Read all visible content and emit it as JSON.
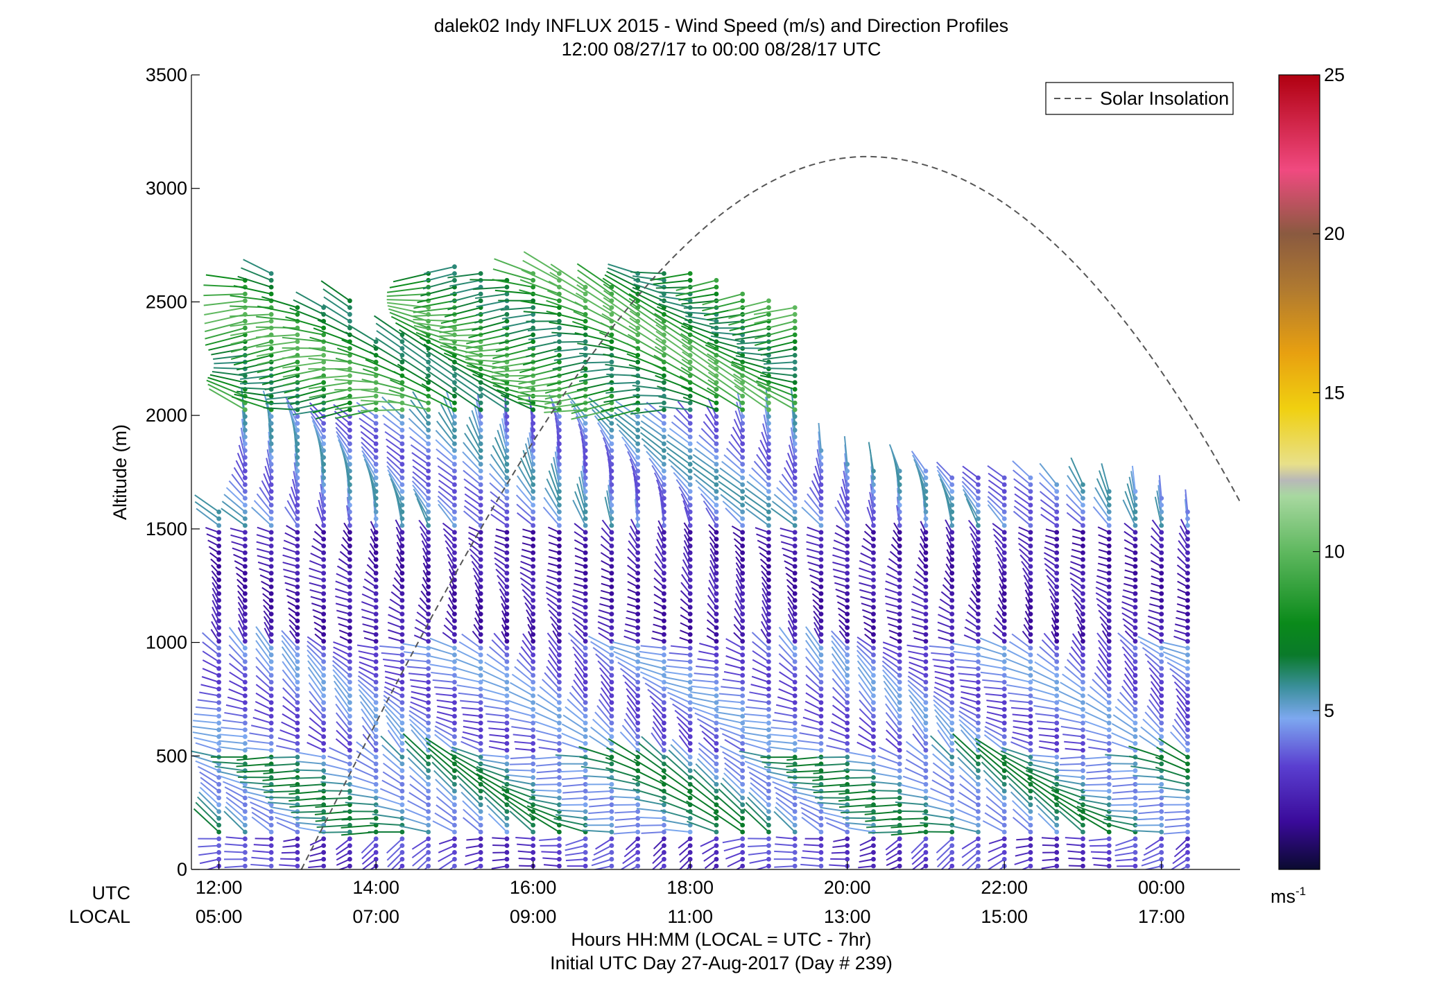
{
  "chart_data": {
    "type": "wind_barb_profile",
    "title": "dalek02 Indy INFLUX 2015 - Wind Speed (m/s) and Direction Profiles",
    "subtitle": "12:00 08/27/17 to 00:00 08/28/17  UTC",
    "ylabel": "Altitude (m)",
    "xlabel": "Hours HH:MM  (LOCAL = UTC - 7hr)",
    "footer": "Initial UTC Day 27-Aug-2017 (Day # 239)",
    "ylim": [
      0,
      3500
    ],
    "xlim_hours_utc": [
      11.65,
      25.0
    ],
    "yticks": [
      0,
      500,
      1000,
      1500,
      2000,
      2500,
      3000,
      3500
    ],
    "ytick_labels": [
      "0",
      "500",
      "1000",
      "1500",
      "2000",
      "2500",
      "3000",
      "3500"
    ],
    "x_row_labels": [
      "UTC",
      "LOCAL"
    ],
    "xticks_hours_utc": [
      12,
      14,
      16,
      18,
      20,
      22,
      24
    ],
    "xtick_labels_utc": [
      "12:00",
      "14:00",
      "16:00",
      "18:00",
      "20:00",
      "22:00",
      "00:00"
    ],
    "xtick_labels_local": [
      "05:00",
      "07:00",
      "09:00",
      "11:00",
      "13:00",
      "15:00",
      "17:00"
    ],
    "legend": {
      "label": "Solar Insolation",
      "placement": "top-right",
      "line_style": "dashed"
    },
    "solar_insolation": {
      "peak_hour_utc": 20.25,
      "peak_altitude_m": 3140,
      "points": [
        [
          13.05,
          0
        ],
        [
          15.0,
          1200
        ],
        [
          17.0,
          2400
        ],
        [
          18.5,
          2900
        ],
        [
          20.25,
          3140
        ],
        [
          22.0,
          2900
        ],
        [
          23.5,
          2400
        ],
        [
          25.0,
          1620
        ]
      ]
    },
    "colorbar": {
      "range": [
        0,
        25
      ],
      "ticks": [
        5,
        10,
        15,
        20,
        25
      ],
      "tick_labels": [
        "5",
        "10",
        "15",
        "20",
        "25"
      ],
      "unit": "ms",
      "unit_exponent": "-1"
    },
    "profiles": {
      "interval_minutes": 20,
      "first_hour_utc": 12.0,
      "count": 38,
      "max_altitude_m": [
        1580,
        2600,
        2650,
        2480,
        2500,
        2520,
        2330,
        2380,
        2640,
        2660,
        2630,
        2600,
        2640,
        2630,
        2580,
        2590,
        2630,
        2650,
        2640,
        2600,
        2550,
        2520,
        2490,
        1850,
        1800,
        1780,
        1760,
        1760,
        1740,
        1750,
        1730,
        1730,
        1710,
        1700,
        1690,
        1680,
        1650,
        1600
      ]
    },
    "layers": [
      {
        "altitude_m": [
          0,
          150
        ],
        "speed_ms": 3.0,
        "direction_deg": 250
      },
      {
        "altitude_m": [
          150,
          500
        ],
        "speed_ms": 5.5,
        "direction_deg": 290
      },
      {
        "altitude_m": [
          500,
          1000
        ],
        "speed_ms": 4.0,
        "direction_deg": 300
      },
      {
        "altitude_m": [
          1000,
          1500
        ],
        "speed_ms": 2.0,
        "direction_deg": 310
      },
      {
        "altitude_m": [
          1500,
          2000
        ],
        "speed_ms": 4.5,
        "direction_deg": 330
      },
      {
        "altitude_m": [
          2000,
          2650
        ],
        "speed_ms": 8.0,
        "direction_deg": 280
      }
    ]
  }
}
